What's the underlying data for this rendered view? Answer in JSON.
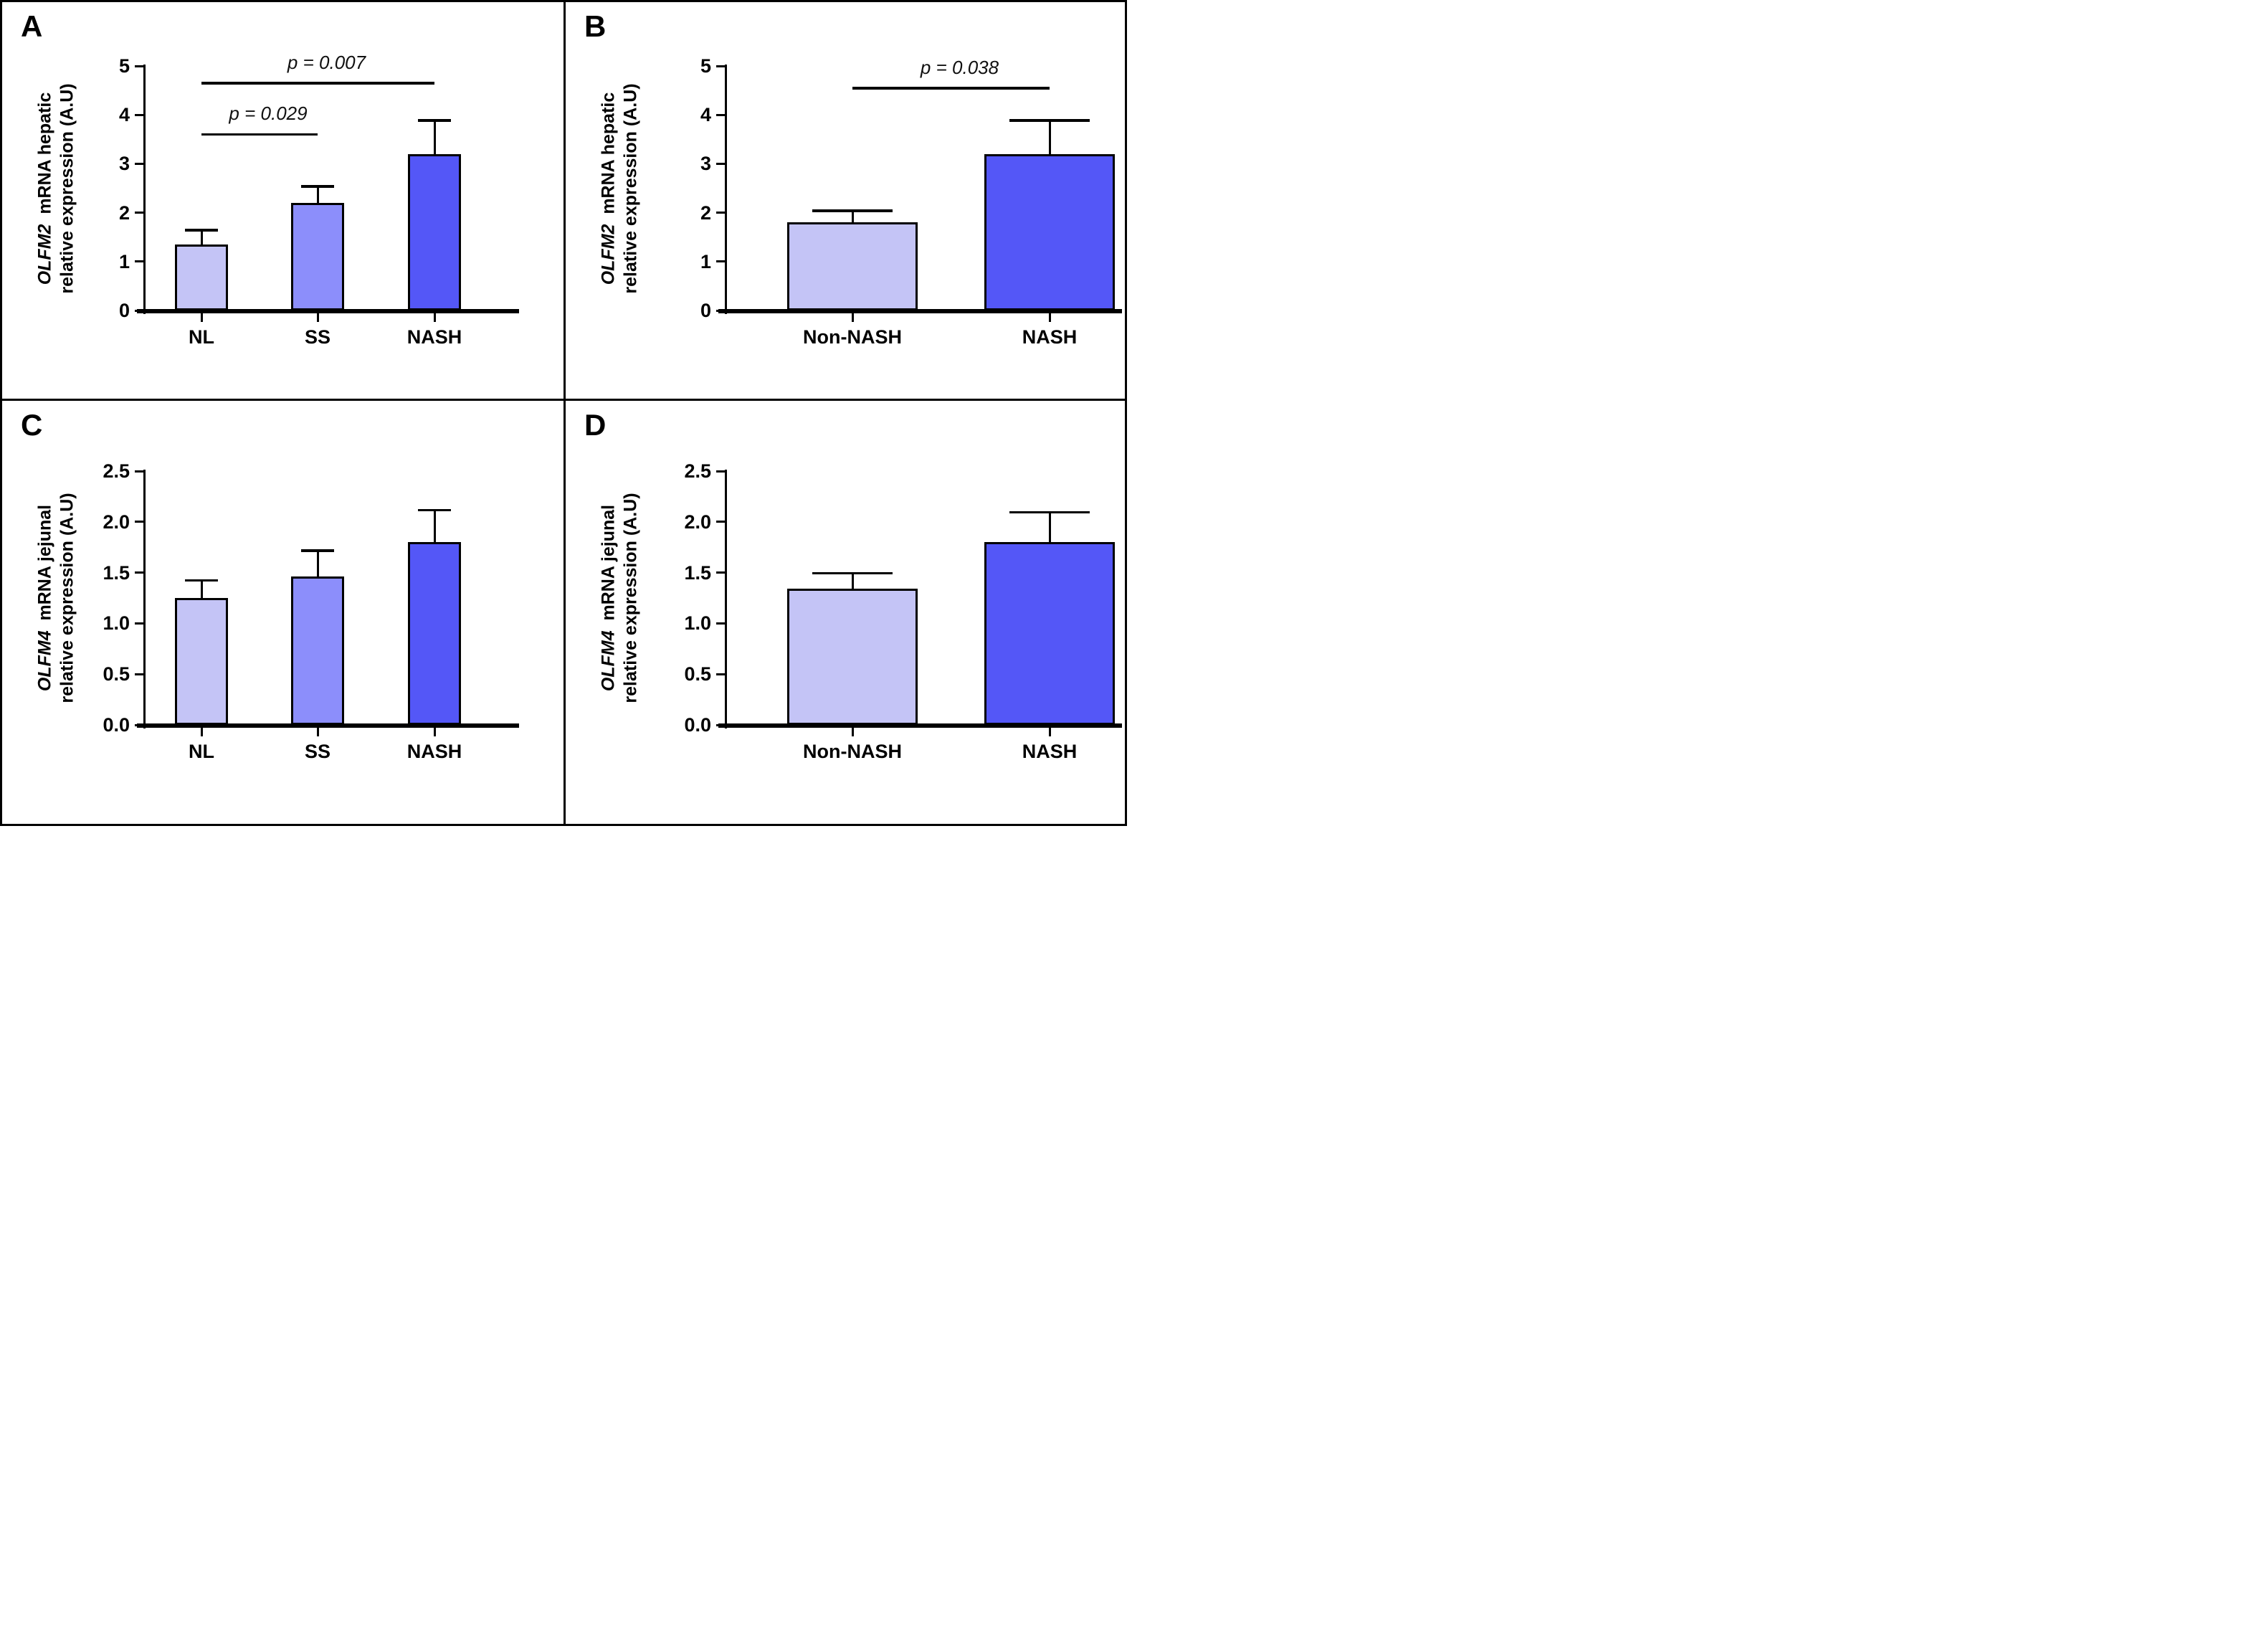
{
  "figure": {
    "background_color": "#ffffff",
    "frame_color": "#000000",
    "panel_letters": [
      "A",
      "B",
      "C",
      "D"
    ]
  },
  "chart_data": [
    {
      "panel": "A",
      "type": "bar",
      "ylabel_gene_italic": "OLFM2",
      "ylabel_line1_rest": "mRNA hepatic",
      "ylabel_line2": "relative expression (A.U)",
      "categories": [
        "NL",
        "SS",
        "NASH"
      ],
      "values": [
        1.35,
        2.2,
        3.2
      ],
      "error_bar_tops": [
        1.65,
        2.55,
        3.9
      ],
      "ylim": [
        0,
        5
      ],
      "ytick_labels": [
        "0",
        "1",
        "2",
        "3",
        "4",
        "5"
      ],
      "bar_colors": [
        "#c4c4f6",
        "#8c8efb",
        "#5457f7"
      ],
      "grid": false,
      "legend": "none",
      "significance_brackets": [
        {
          "between": [
            "NL",
            "NASH"
          ],
          "y": 4.65,
          "label": "p = 0.007"
        },
        {
          "between": [
            "NL",
            "SS"
          ],
          "y": 3.6,
          "label": "p = 0.029"
        }
      ]
    },
    {
      "panel": "B",
      "type": "bar",
      "ylabel_gene_italic": "OLFM2",
      "ylabel_line1_rest": "mRNA hepatic",
      "ylabel_line2": "relative expression (A.U)",
      "categories": [
        "Non-NASH",
        "NASH"
      ],
      "values": [
        1.8,
        3.2
      ],
      "error_bar_tops": [
        2.05,
        3.9
      ],
      "ylim": [
        0,
        5
      ],
      "ytick_labels": [
        "0",
        "1",
        "2",
        "3",
        "4",
        "5"
      ],
      "bar_colors": [
        "#c4c4f6",
        "#5457f7"
      ],
      "grid": false,
      "legend": "none",
      "significance_brackets": [
        {
          "between": [
            "Non-NASH",
            "NASH"
          ],
          "y": 4.55,
          "label": "p = 0.038"
        }
      ]
    },
    {
      "panel": "C",
      "type": "bar",
      "ylabel_gene_italic": "OLFM4",
      "ylabel_line1_rest": "mRNA jejunal",
      "ylabel_line2": "relative expression (A.U)",
      "categories": [
        "NL",
        "SS",
        "NASH"
      ],
      "values": [
        1.25,
        1.46,
        1.8
      ],
      "error_bar_tops": [
        1.43,
        1.72,
        2.12
      ],
      "ylim": [
        0,
        2.5
      ],
      "ytick_labels": [
        "0.0",
        "0.5",
        "1.0",
        "1.5",
        "2.0",
        "2.5"
      ],
      "bar_colors": [
        "#c4c4f6",
        "#8c8efb",
        "#5457f7"
      ],
      "grid": false,
      "legend": "none",
      "significance_brackets": []
    },
    {
      "panel": "D",
      "type": "bar",
      "ylabel_gene_italic": "OLFM4",
      "ylabel_line1_rest": "mRNA jejunal",
      "ylabel_line2": "relative expression (A.U)",
      "categories": [
        "Non-NASH",
        "NASH"
      ],
      "values": [
        1.34,
        1.8
      ],
      "error_bar_tops": [
        1.5,
        2.1
      ],
      "ylim": [
        0,
        2.5
      ],
      "ytick_labels": [
        "0.0",
        "0.5",
        "1.0",
        "1.5",
        "2.0",
        "2.5"
      ],
      "bar_colors": [
        "#c4c4f6",
        "#5457f7"
      ],
      "grid": false,
      "legend": "none",
      "significance_brackets": []
    }
  ]
}
